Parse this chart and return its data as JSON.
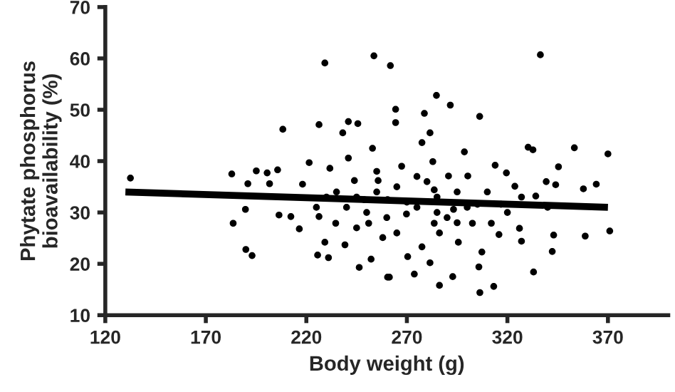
{
  "chart_data": {
    "type": "scatter",
    "xlabel": "Body weight (g)",
    "ylabel": "Phytate phosphorus\nbioavailability (%)",
    "xlim": [
      120,
      400
    ],
    "xticks": [
      120,
      170,
      220,
      270,
      320,
      370
    ],
    "ylim": [
      10,
      70
    ],
    "yticks": [
      10,
      20,
      30,
      40,
      50,
      60,
      70
    ],
    "grid": false,
    "legend": false,
    "marker": "circle",
    "series": [
      {
        "color": "#000000",
        "x": [
          132.5,
          229.2,
          253.6,
          261.8,
          208.3,
          226.3,
          240.9,
          245.6,
          182.9,
          195.1,
          200.5,
          205.7,
          190.9,
          201.7,
          183.6,
          189.9,
          193,
          189.7,
          206.4,
          212.3,
          216.5,
          225.6,
          231,
          221.4,
          231.7,
          218.1,
          226.3,
          229.2,
          238.1,
          240.9,
          252.9,
          260.4,
          246.3,
          239.2,
          234.6,
          248.7,
          255.7,
          243.9,
          251,
          258,
          252.2,
          336.4,
          284.7,
          291.6,
          306.2,
          264.4,
          264.4,
          278.7,
          281.5,
          330.3,
          332.7,
          353.3,
          370,
          345.4,
          339.3,
          344,
          357.8,
          364.2,
          358.7,
          370.9,
          342.3,
          333,
          343,
          313.2,
          306.3,
          305.8,
          292.8,
          286.2,
          261.3,
          273.7,
          281.5,
          300.3,
          313.9,
          319.5,
          323.7,
          327,
          334.1,
          326,
          327,
          315.8,
          312,
          307.3,
          295.6,
          286.2,
          277.5,
          270.4,
          277.5,
          298.6,
          282.9,
          267.4,
          290.7,
          283.6,
          269.8,
          293.2,
          305.1,
          316.8,
          260.4,
          302.6,
          283.6,
          245,
          250,
          255,
          260,
          265,
          270,
          275,
          280,
          285,
          290,
          295,
          300,
          240,
          235,
          245,
          255,
          265,
          275,
          285,
          295,
          230,
          225,
          310,
          320,
          340
        ],
        "values": [
          36.7,
          59.1,
          60.5,
          58.6,
          46.2,
          47.1,
          47.7,
          47.3,
          37.5,
          38.1,
          37.7,
          38.3,
          35.6,
          35.6,
          27.9,
          22.8,
          21.6,
          30.6,
          29.5,
          29.2,
          26.8,
          21.7,
          21.2,
          39.7,
          38.6,
          35.5,
          29.2,
          24.2,
          45.5,
          40.6,
          42.5,
          17.4,
          19.3,
          23.7,
          27.9,
          32.5,
          36.2,
          36.2,
          27.9,
          25.1,
          20.9,
          60.7,
          52.8,
          50.9,
          48.7,
          50.1,
          47.5,
          49.3,
          45.5,
          42.7,
          42.2,
          42.6,
          41.4,
          38.9,
          36,
          35.4,
          34.6,
          35.5,
          25.4,
          26.4,
          22.4,
          18.4,
          25.6,
          15.6,
          14.4,
          19.4,
          17.5,
          15.8,
          17.4,
          18,
          20.2,
          37.1,
          39.2,
          37.7,
          35.1,
          33,
          33.2,
          26.9,
          24.4,
          25.7,
          27.9,
          22.3,
          24.2,
          26,
          23.3,
          21.4,
          43.6,
          41.8,
          39.9,
          39,
          37.1,
          34.4,
          29.7,
          30.6,
          31.6,
          31.6,
          32.5,
          27.9,
          27.9,
          33,
          30,
          34,
          29,
          35,
          32,
          31,
          36,
          33,
          29,
          34,
          31,
          31,
          34,
          27,
          38,
          26,
          37,
          30,
          28,
          33,
          31,
          34,
          30,
          31
        ]
      },
      {
        "type": "line",
        "color": "#000000",
        "marker": "none",
        "line_style": "solid",
        "x": [
          130,
          370
        ],
        "values": [
          34.0,
          31.0
        ]
      }
    ]
  }
}
